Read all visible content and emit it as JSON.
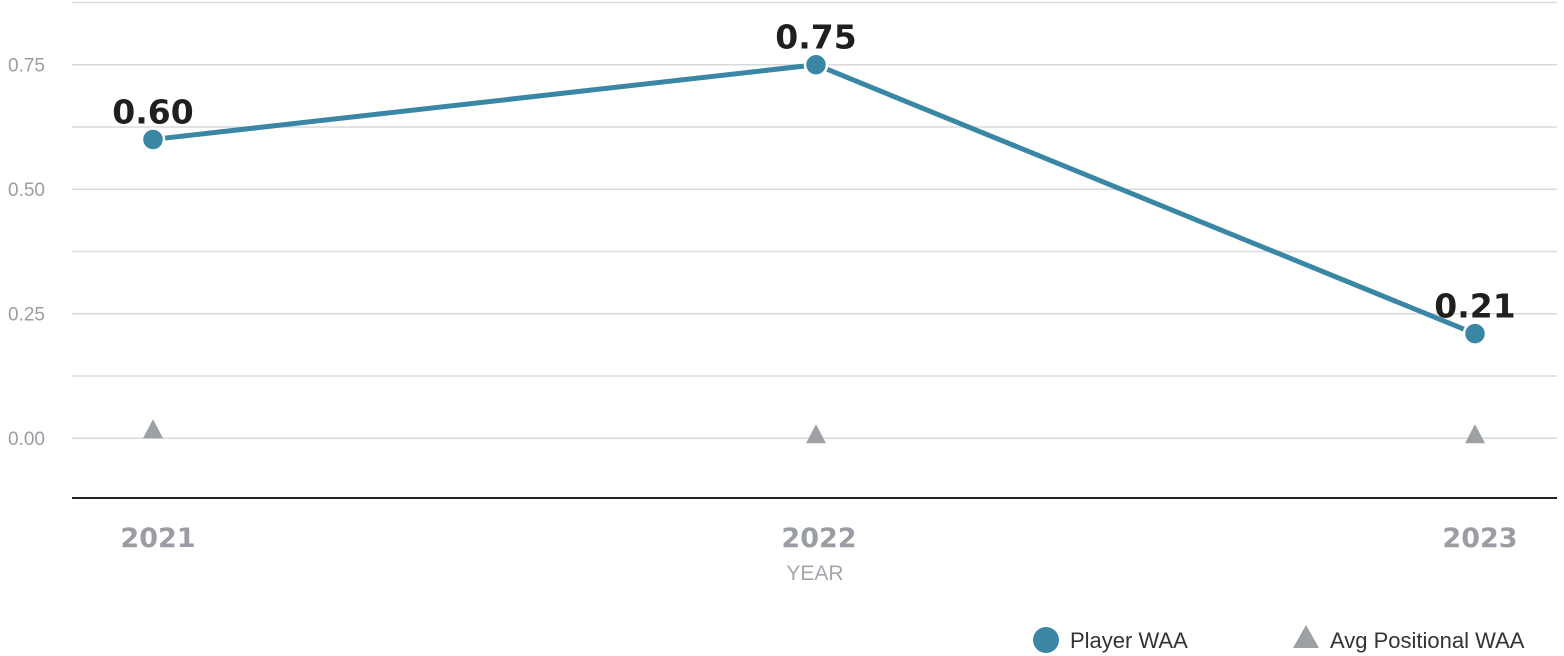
{
  "chart_data": {
    "type": "line",
    "categories": [
      "2021",
      "2022",
      "2023"
    ],
    "series": [
      {
        "name": "Player WAA",
        "values": [
          0.6,
          0.75,
          0.21
        ],
        "color": "#3a87a5",
        "marker": "circle"
      },
      {
        "name": "Avg Positional WAA",
        "values": [
          0.01,
          0.0,
          0.0
        ],
        "color": "#9da1a6",
        "marker": "triangle"
      }
    ],
    "data_labels": [
      "0.60",
      "0.75",
      "0.21"
    ],
    "yticks": [
      "0.00",
      "0.25",
      "0.50",
      "0.75"
    ],
    "ylim": [
      -0.12,
      0.88
    ],
    "xlabel": "YEAR",
    "ylabel": "",
    "grid": true,
    "legend_position": "bottom-right"
  }
}
